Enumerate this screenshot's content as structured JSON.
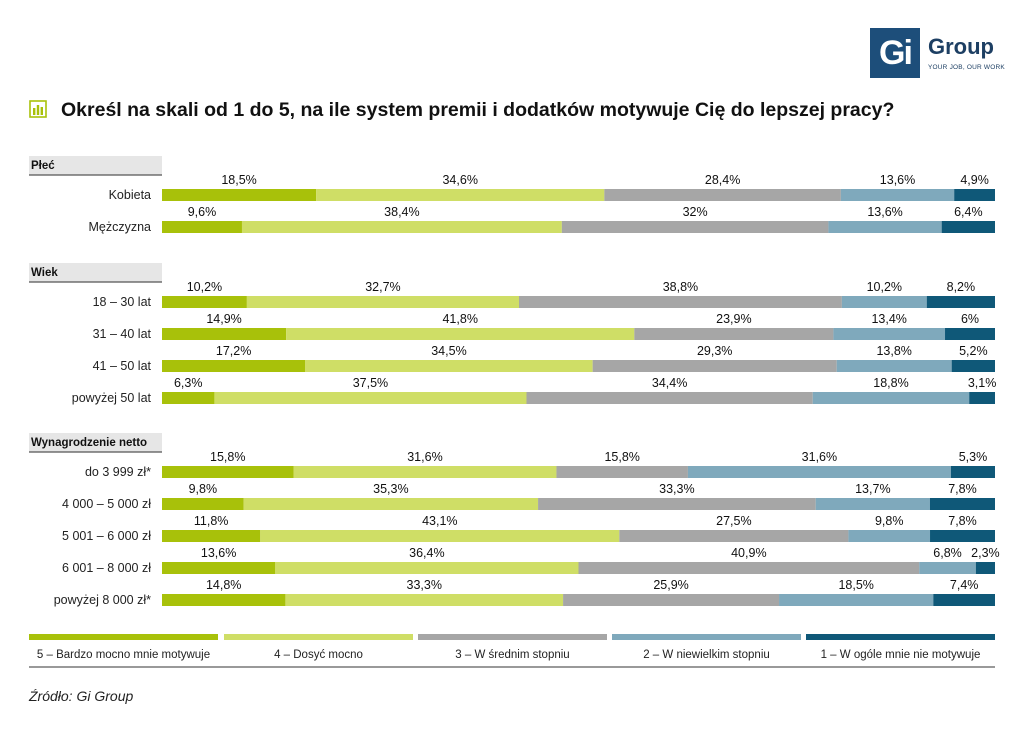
{
  "logo": {
    "icon": "gi-group-logo",
    "mark": "Gi",
    "word": "Group",
    "tagline": "YOUR JOB, OUR WORK",
    "color": "#1d4e7a"
  },
  "title": "Określ na skali od 1 do 5, na ile system premii i dodatków motywuje Cię do lepszej pracy?",
  "source": "Źródło: Gi Group",
  "chart_data": {
    "type": "bar",
    "orientation": "horizontal",
    "stacked": true,
    "normalized_percent": true,
    "grid": false,
    "legend_position": "bottom",
    "series": [
      {
        "name": "5 – Bardzo mocno mnie motywuje",
        "color": "#a8c10a"
      },
      {
        "name": "4 – Dosyć mocno",
        "color": "#cfde66"
      },
      {
        "name": "3 – W średnim stopniu",
        "color": "#a6a6a6"
      },
      {
        "name": "2 – W niewielkim stopniu",
        "color": "#7fa9bc"
      },
      {
        "name": "1 – W ogóle mnie nie motywuje",
        "color": "#0f5878"
      }
    ],
    "groups": [
      {
        "name": "Płeć",
        "rows": [
          {
            "label": "Kobieta",
            "values": [
              18.5,
              34.6,
              28.4,
              13.6,
              4.9
            ],
            "labels": [
              "18,5%",
              "34,6%",
              "28,4%",
              "13,6%",
              "4,9%"
            ]
          },
          {
            "label": "Mężczyzna",
            "values": [
              9.6,
              38.4,
              32,
              13.6,
              6.4
            ],
            "labels": [
              "9,6%",
              "38,4%",
              "32%",
              "13,6%",
              "6,4%"
            ]
          }
        ]
      },
      {
        "name": "Wiek",
        "rows": [
          {
            "label": "18 – 30 lat",
            "values": [
              10.2,
              32.7,
              38.8,
              10.2,
              8.2
            ],
            "labels": [
              "10,2%",
              "32,7%",
              "38,8%",
              "10,2%",
              "8,2%"
            ]
          },
          {
            "label": "31 – 40 lat",
            "values": [
              14.9,
              41.8,
              23.9,
              13.4,
              6
            ],
            "labels": [
              "14,9%",
              "41,8%",
              "23,9%",
              "13,4%",
              "6%"
            ]
          },
          {
            "label": "41 – 50 lat",
            "values": [
              17.2,
              34.5,
              29.3,
              13.8,
              5.2
            ],
            "labels": [
              "17,2%",
              "34,5%",
              "29,3%",
              "13,8%",
              "5,2%"
            ]
          },
          {
            "label": "powyżej 50 lat",
            "values": [
              6.3,
              37.5,
              34.4,
              18.8,
              3.1
            ],
            "labels": [
              "6,3%",
              "37,5%",
              "34,4%",
              "18,8%",
              "3,1%"
            ]
          }
        ]
      },
      {
        "name": "Wynagrodzenie netto",
        "rows": [
          {
            "label": "do 3 999 zł*",
            "values": [
              15.8,
              31.6,
              15.8,
              31.6,
              5.3
            ],
            "labels": [
              "15,8%",
              "31,6%",
              "15,8%",
              "31,6%",
              "5,3%"
            ]
          },
          {
            "label": "4 000 – 5 000 zł",
            "values": [
              9.8,
              35.3,
              33.3,
              13.7,
              7.8
            ],
            "labels": [
              "9,8%",
              "35,3%",
              "33,3%",
              "13,7%",
              "7,8%"
            ]
          },
          {
            "label": "5 001 – 6 000 zł",
            "values": [
              11.8,
              43.1,
              27.5,
              9.8,
              7.8
            ],
            "labels": [
              "11,8%",
              "43,1%",
              "27,5%",
              "9,8%",
              "7,8%"
            ]
          },
          {
            "label": "6 001 – 8 000 zł",
            "values": [
              13.6,
              36.4,
              40.9,
              6.8,
              2.3
            ],
            "labels": [
              "13,6%",
              "36,4%",
              "40,9%",
              "6,8%",
              "2,3%"
            ]
          },
          {
            "label": "powyżej 8 000 zł*",
            "values": [
              14.8,
              33.3,
              25.9,
              18.5,
              7.4
            ],
            "labels": [
              "14,8%",
              "33,3%",
              "25,9%",
              "18,5%",
              "7,4%"
            ]
          }
        ]
      }
    ]
  }
}
